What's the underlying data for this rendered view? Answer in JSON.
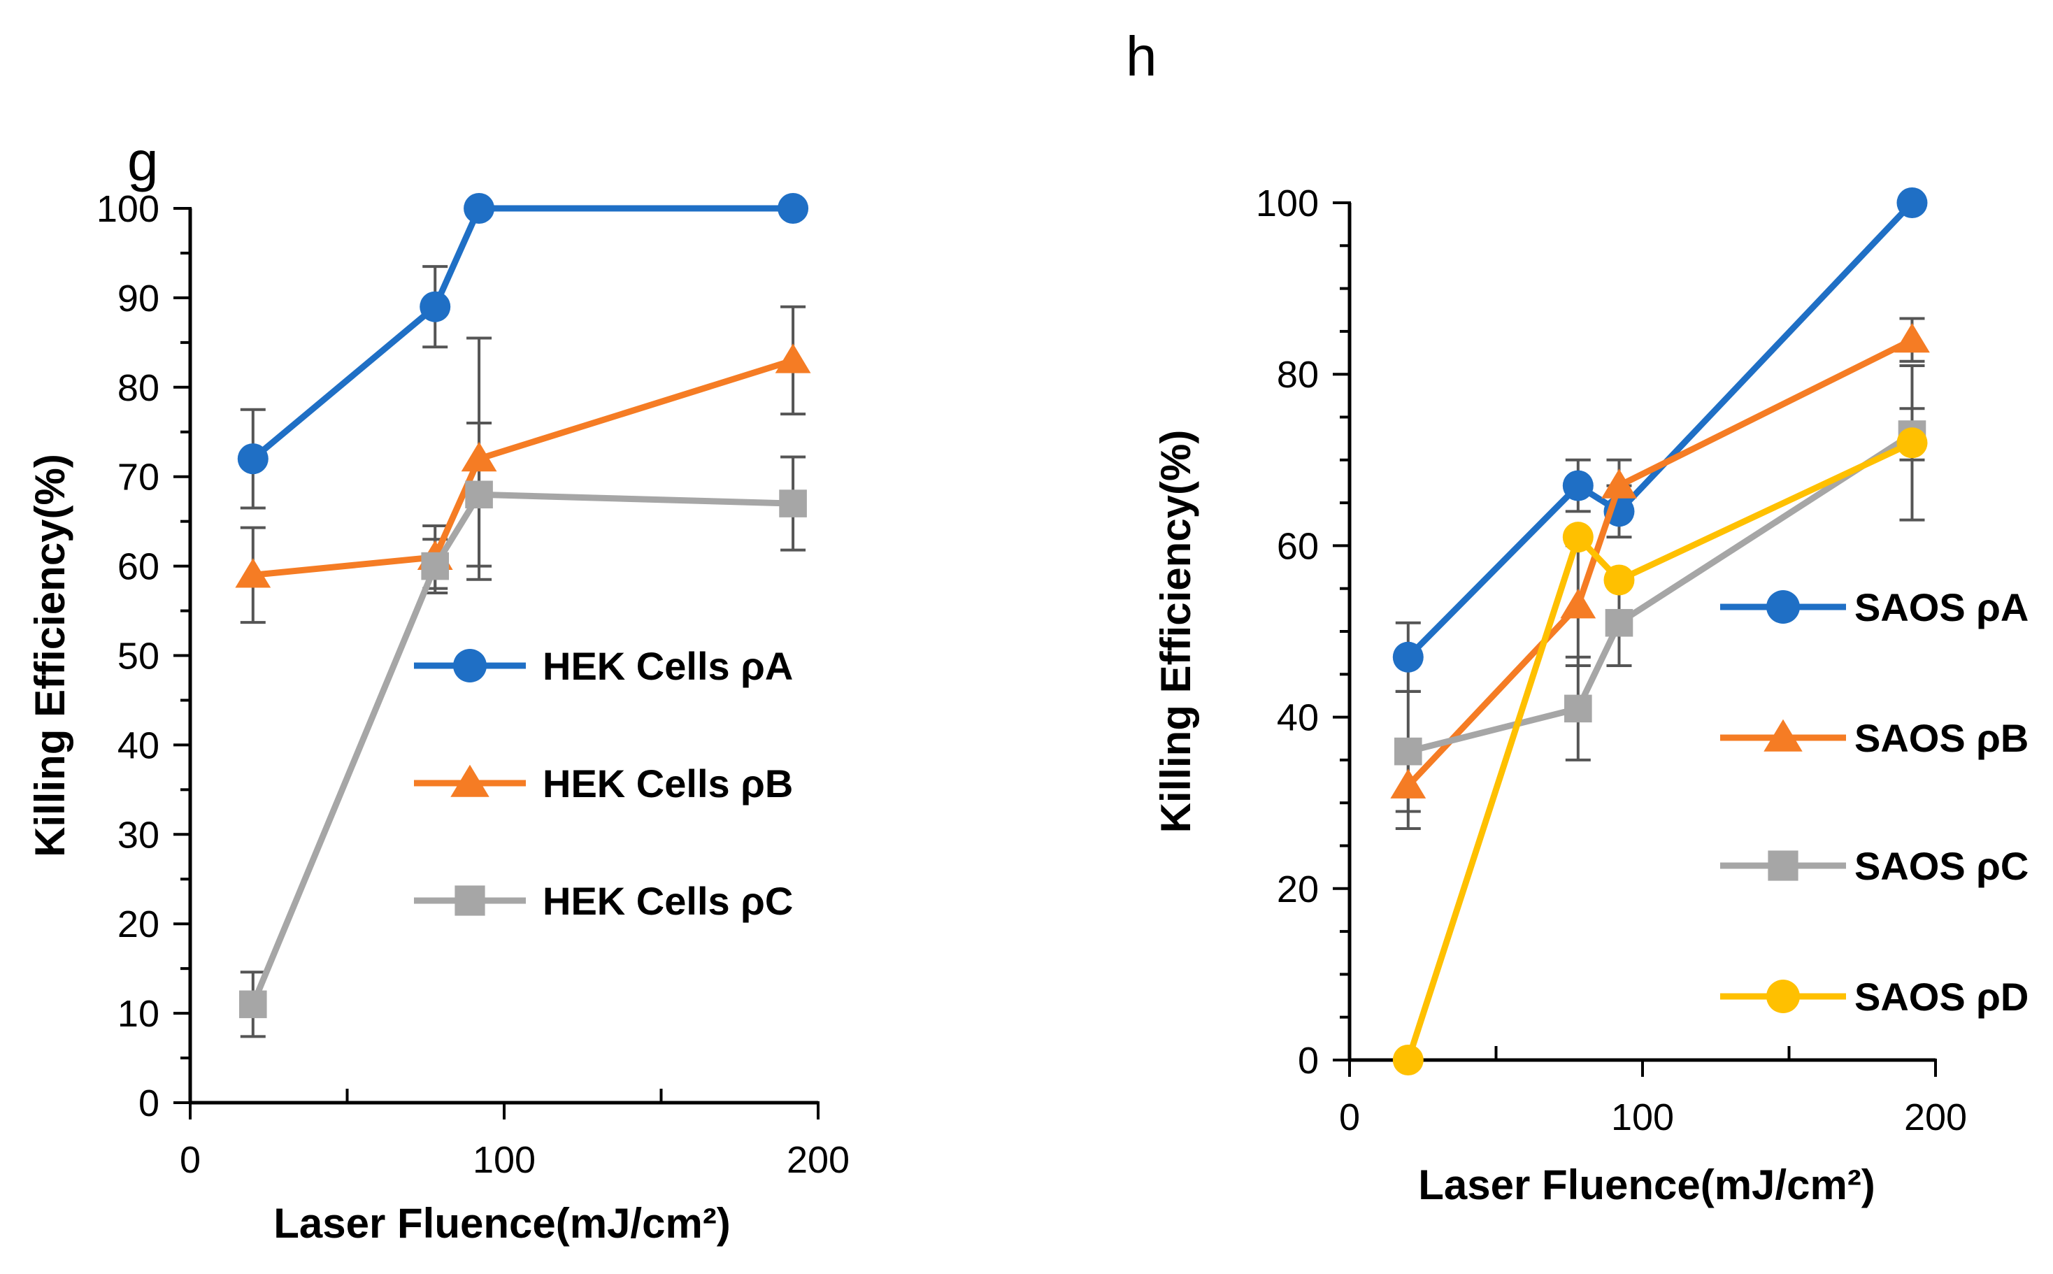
{
  "chart_data": [
    {
      "panel_label": "g",
      "type": "line",
      "xlabel": "Laser Fluence(mJ/cm²)",
      "ylabel": "Killing Efficiency(%)",
      "xlim": [
        0,
        200
      ],
      "ylim": [
        0,
        100
      ],
      "xticks": [
        "0",
        "100",
        "200"
      ],
      "yticks": [
        "0",
        "10",
        "20",
        "30",
        "40",
        "50",
        "60",
        "70",
        "80",
        "90",
        "100"
      ],
      "grid": false,
      "legend_position": "right-middle",
      "series": [
        {
          "name": "HEK Cells ρA",
          "marker": "circle",
          "color": "#1f6fc5",
          "points": [
            {
              "x": 20,
              "y": 72,
              "err": 5.5
            },
            {
              "x": 78,
              "y": 89,
              "err": 4.5
            },
            {
              "x": 92,
              "y": 100,
              "err": 0
            },
            {
              "x": 192,
              "y": 100,
              "err": 0
            }
          ]
        },
        {
          "name": "HEK Cells ρB",
          "marker": "triangle",
          "color": "#f57c24",
          "points": [
            {
              "x": 20,
              "y": 59,
              "err": 5.3
            },
            {
              "x": 78,
              "y": 61,
              "err": 3.5
            },
            {
              "x": 92,
              "y": 72,
              "err": 13.5
            },
            {
              "x": 192,
              "y": 83,
              "err": 6
            }
          ]
        },
        {
          "name": "HEK Cells ρC",
          "marker": "square",
          "color": "#a6a6a6",
          "points": [
            {
              "x": 20,
              "y": 11,
              "err": 3.6
            },
            {
              "x": 78,
              "y": 60,
              "err": 3
            },
            {
              "x": 92,
              "y": 68,
              "err": 8
            },
            {
              "x": 192,
              "y": 67,
              "err": 5.2
            }
          ]
        }
      ]
    },
    {
      "panel_label": "h",
      "type": "line",
      "xlabel": "Laser Fluence(mJ/cm²)",
      "ylabel": "Killing Efficiency(%)",
      "xlim": [
        0,
        200
      ],
      "ylim": [
        0,
        100
      ],
      "xticks": [
        "0",
        "100",
        "200"
      ],
      "yticks": [
        "0",
        "20",
        "40",
        "60",
        "80",
        "100"
      ],
      "grid": false,
      "legend_position": "right",
      "series": [
        {
          "name": "SAOS ρA",
          "marker": "circle",
          "color": "#1f6fc5",
          "points": [
            {
              "x": 20,
              "y": 47,
              "err": 4
            },
            {
              "x": 78,
              "y": 67,
              "err": 3
            },
            {
              "x": 92,
              "y": 64,
              "err": 3
            },
            {
              "x": 192,
              "y": 100,
              "err": 0
            }
          ]
        },
        {
          "name": "SAOS ρB",
          "marker": "triangle",
          "color": "#f57c24",
          "points": [
            {
              "x": 20,
              "y": 32,
              "err": 5
            },
            {
              "x": 78,
              "y": 53,
              "err": 7
            },
            {
              "x": 92,
              "y": 67,
              "err": 3
            },
            {
              "x": 192,
              "y": 84,
              "err": 2.5
            }
          ]
        },
        {
          "name": "SAOS ρC",
          "marker": "square",
          "color": "#a6a6a6",
          "points": [
            {
              "x": 20,
              "y": 36,
              "err": 7
            },
            {
              "x": 78,
              "y": 41,
              "err": 6
            },
            {
              "x": 92,
              "y": 51,
              "err": 5
            },
            {
              "x": 192,
              "y": 73,
              "err": 3
            }
          ]
        },
        {
          "name": "SAOS ρD",
          "marker": "circle",
          "color": "#ffc000",
          "points": [
            {
              "x": 20,
              "y": 0,
              "err": 0
            },
            {
              "x": 78,
              "y": 61,
              "err": 0
            },
            {
              "x": 92,
              "y": 56,
              "err": 0
            },
            {
              "x": 192,
              "y": 72,
              "err": 9
            }
          ]
        }
      ]
    }
  ]
}
